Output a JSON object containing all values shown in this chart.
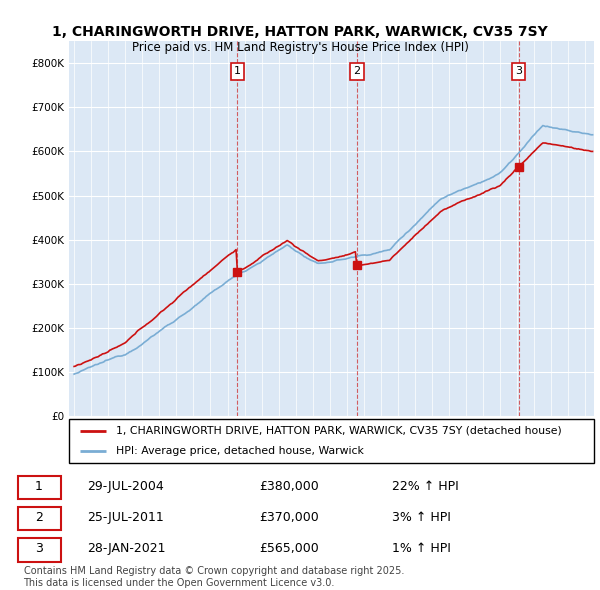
{
  "title": "1, CHARINGWORTH DRIVE, HATTON PARK, WARWICK, CV35 7SY",
  "subtitle": "Price paid vs. HM Land Registry's House Price Index (HPI)",
  "hpi_label": "HPI: Average price, detached house, Warwick",
  "property_label": "1, CHARINGWORTH DRIVE, HATTON PARK, WARWICK, CV35 7SY (detached house)",
  "footer": "Contains HM Land Registry data © Crown copyright and database right 2025.\nThis data is licensed under the Open Government Licence v3.0.",
  "sales": [
    {
      "num": 1,
      "date": "29-JUL-2004",
      "price": 380000,
      "pct": "22%",
      "direction": "↑"
    },
    {
      "num": 2,
      "date": "25-JUL-2011",
      "price": 370000,
      "pct": "3%",
      "direction": "↑"
    },
    {
      "num": 3,
      "date": "28-JAN-2021",
      "price": 565000,
      "pct": "1%",
      "direction": "↑"
    }
  ],
  "sale_years": [
    2004.58,
    2011.58,
    2021.08
  ],
  "sale_prices": [
    380000,
    370000,
    565000
  ],
  "hpi_color": "#7aadd4",
  "price_color": "#cc1111",
  "dashed_color": "#cc1111",
  "ylim": [
    0,
    850000
  ],
  "yticks": [
    0,
    100000,
    200000,
    300000,
    400000,
    500000,
    600000,
    700000,
    800000
  ],
  "background_color": "#ffffff",
  "plot_bg_color": "#dce8f5",
  "xlim_left": 1994.7,
  "xlim_right": 2025.5
}
